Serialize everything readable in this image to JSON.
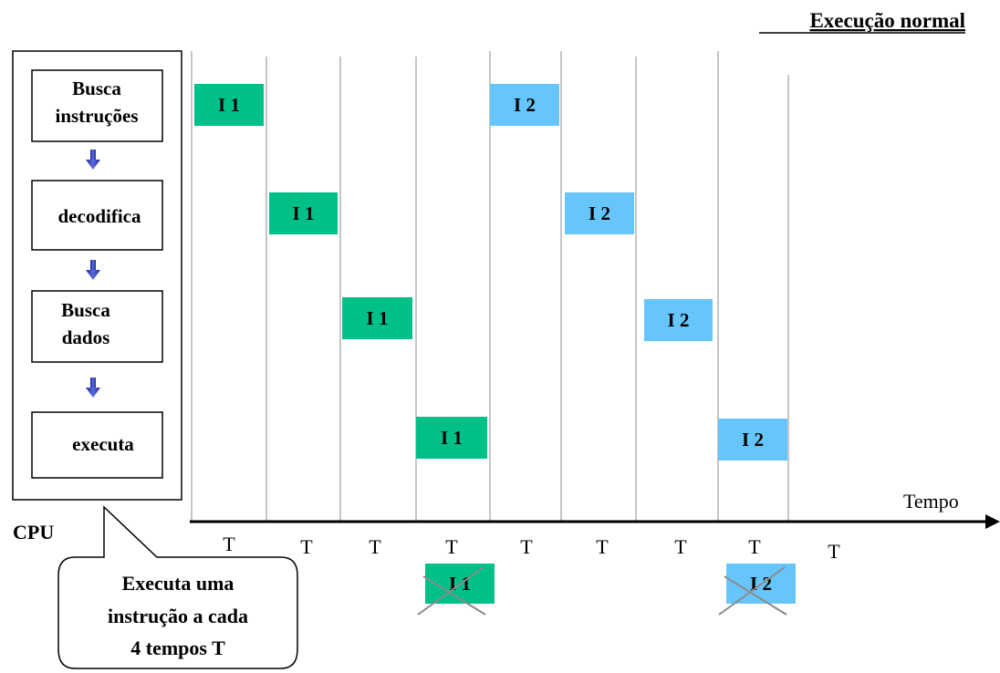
{
  "title": "Execução normal",
  "cpu": {
    "label": "CPU",
    "stages": [
      "Busca instruções",
      "decodifica",
      "Busca dados",
      "executa"
    ]
  },
  "axis": {
    "label": "Tempo",
    "ticks": [
      "T",
      "T",
      "T",
      "T",
      "T",
      "T",
      "T",
      "T",
      "T"
    ]
  },
  "instructions": [
    {
      "label": "I 1",
      "color": "#00c08a",
      "start_period": 1
    },
    {
      "label": "I 2",
      "color": "#66c6fb",
      "start_period": 5
    }
  ],
  "completed": [
    {
      "label": "I 1",
      "color": "#00c08a",
      "after_period": 4
    },
    {
      "label": "I 2",
      "color": "#66c6fb",
      "after_period": 8
    }
  ],
  "callout": {
    "lines": [
      "Executa uma",
      "instrução a cada",
      "4 tempos T"
    ]
  },
  "colors": {
    "arrow": "#2f3fb5",
    "grid": "#b4b4b4",
    "border": "#000000",
    "cross": "#8a8a8a"
  }
}
